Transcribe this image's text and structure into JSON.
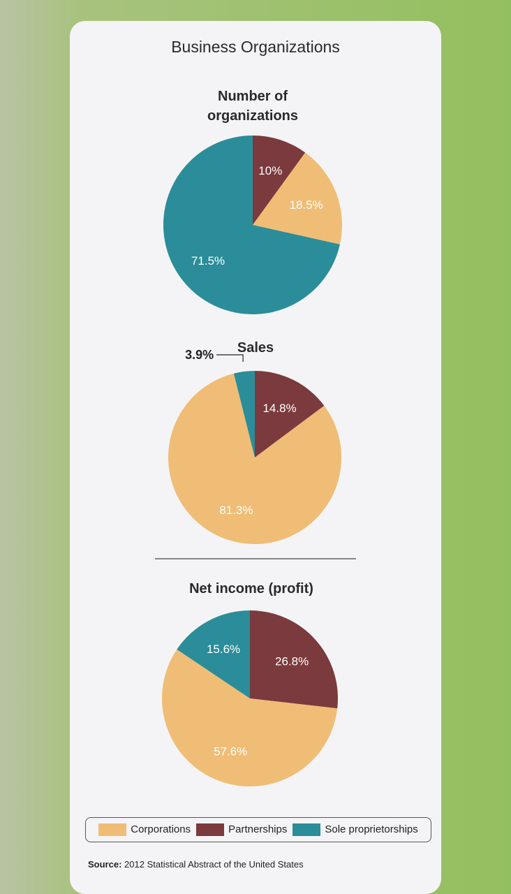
{
  "title": "Business Organizations",
  "source_label": "Source:",
  "source": "2012 Statistical Abstract of the United States",
  "chart_data": [
    {
      "type": "pie",
      "title": "Number of organizations",
      "categories": [
        "Corporations",
        "Partnerships",
        "Sole proprietorships"
      ],
      "values": [
        18.5,
        10,
        71.5
      ],
      "value_labels": [
        "18.5%",
        "10%",
        "71.5%"
      ],
      "colors": [
        "#f0bd76",
        "#7b3a3d",
        "#2a8d99"
      ]
    },
    {
      "type": "pie",
      "title": "Sales",
      "categories": [
        "Corporations",
        "Partnerships",
        "Sole proprietorships"
      ],
      "values": [
        81.3,
        14.8,
        3.9
      ],
      "value_labels": [
        "81.3%",
        "14.8%",
        "3.9%"
      ],
      "colors": [
        "#f0bd76",
        "#7b3a3d",
        "#2a8d99"
      ]
    },
    {
      "type": "pie",
      "title": "Net income (profit)",
      "categories": [
        "Corporations",
        "Partnerships",
        "Sole proprietorships"
      ],
      "values": [
        57.6,
        26.8,
        15.6
      ],
      "value_labels": [
        "57.6%",
        "26.8%",
        "15.6%"
      ],
      "colors": [
        "#f0bd76",
        "#7b3a3d",
        "#2a8d99"
      ]
    }
  ]
}
